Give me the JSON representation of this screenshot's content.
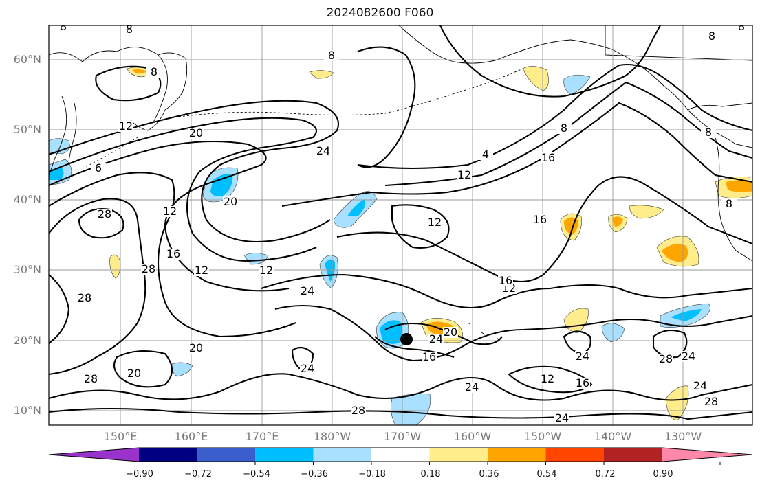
{
  "title": "2024082600 F060",
  "lat_labels": [
    "60°N",
    "50°N",
    "40°N",
    "30°N",
    "20°N",
    "10°N"
  ],
  "lon_labels": [
    "150°E",
    "160°E",
    "170°E",
    "180°W",
    "170°W",
    "160°W",
    "150°W",
    "140°W",
    "130°W"
  ],
  "colorbar": {
    "ticks": [
      "−0.90",
      "−0.72",
      "−0.54",
      "−0.36",
      "−0.18",
      "0.18",
      "0.36",
      "0.54",
      "0.72",
      "0.90"
    ],
    "colors": [
      "#9933cc",
      "#000080",
      "#3a5fcd",
      "#00bfff",
      "#aae0ff",
      "#ffffff",
      "#ffec8b",
      "#ffa500",
      "#ff4500",
      "#b22222",
      "#ff88aa"
    ]
  },
  "contour_labels": [
    "8",
    "8",
    "8",
    "8",
    "4",
    "12",
    "12",
    "12",
    "12",
    "12",
    "12",
    "16",
    "16",
    "16",
    "16",
    "16",
    "16",
    "20",
    "20",
    "20",
    "20",
    "20",
    "24",
    "24",
    "24",
    "24",
    "24",
    "24",
    "24",
    "24",
    "24",
    "28",
    "28",
    "28",
    "28",
    "28",
    "28",
    "28",
    "28",
    "6"
  ],
  "storm_marker": "tropical-cyclone"
}
